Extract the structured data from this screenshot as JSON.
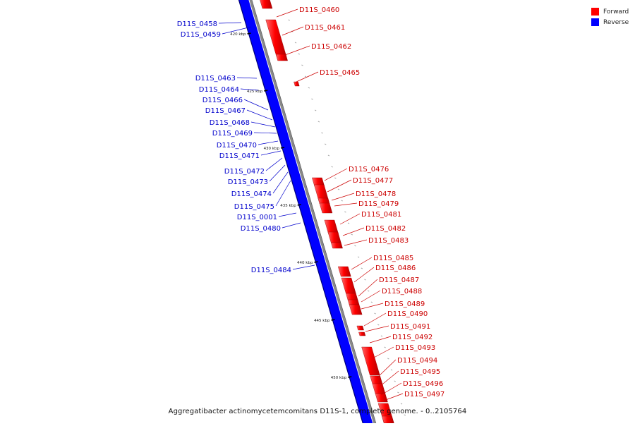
{
  "legend": {
    "items": [
      {
        "label": "Forward",
        "color": "#ff0000"
      },
      {
        "label": "Reverse",
        "color": "#0000ff"
      }
    ]
  },
  "caption": "Aggregatibacter actinomycetemcomitans D11S-1, complete genome. - 0..2105764",
  "colors": {
    "forward": "#ff0000",
    "reverse": "#0000ff",
    "forward_label": "#cc0000",
    "reverse_label": "#0000cc",
    "backbone": "#888888"
  },
  "ticks": [
    "420 kbp",
    "425 kbp",
    "430 kbp",
    "435 kbp",
    "440 kbp",
    "445 kbp",
    "450 kbp"
  ],
  "forward_genes": [
    "D11S_0460",
    "D11S_0461",
    "D11S_0462",
    "D11S_0465",
    "D11S_0476",
    "D11S_0477",
    "D11S_0478",
    "D11S_0479",
    "D11S_0481",
    "D11S_0482",
    "D11S_0483",
    "D11S_0485",
    "D11S_0486",
    "D11S_0487",
    "D11S_0488",
    "D11S_0489",
    "D11S_0490",
    "D11S_0491",
    "D11S_0492",
    "D11S_0493",
    "D11S_0494",
    "D11S_0495",
    "D11S_0496",
    "D11S_0497"
  ],
  "reverse_genes": [
    "D11S_0458",
    "D11S_0459",
    "D11S_0463",
    "D11S_0464",
    "D11S_0466",
    "D11S_0467",
    "D11S_0468",
    "D11S_0469",
    "D11S_0470",
    "D11S_0471",
    "D11S_0472",
    "D11S_0473",
    "D11S_0474",
    "D11S_0475",
    "D11S_0001",
    "D11S_0480",
    "D11S_0484"
  ]
}
